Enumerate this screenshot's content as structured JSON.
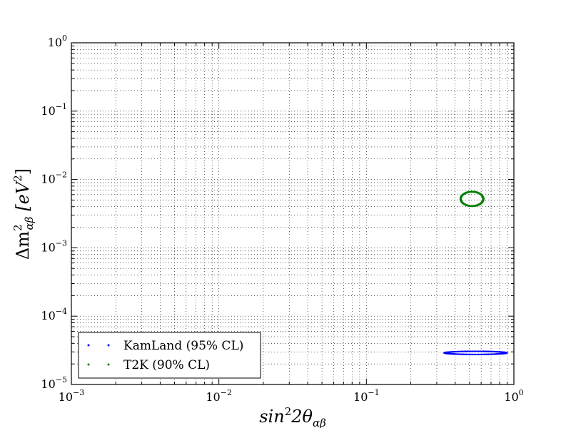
{
  "chart_data": {
    "type": "scatter",
    "xscale": "log",
    "yscale": "log",
    "xlim": [
      0.001,
      1
    ],
    "ylim": [
      1e-05,
      1
    ],
    "xlabel_base": "sin",
    "xlabel_rest": "2θ",
    "xlabel_sub": "αβ",
    "xlabel_sup": "2",
    "ylabel_main": "Δm",
    "ylabel_sub": "αβ",
    "ylabel_sup": "2",
    "ylabel_unit": "[eV",
    "ylabel_unit_sup": "2",
    "ylabel_unit_close": "]",
    "grid": true,
    "legend_position": "lower-left",
    "x_ticks": [
      {
        "value": 0.001,
        "base": "10",
        "exp": "−3"
      },
      {
        "value": 0.01,
        "base": "10",
        "exp": "−2"
      },
      {
        "value": 0.1,
        "base": "10",
        "exp": "−1"
      },
      {
        "value": 1,
        "base": "10",
        "exp": "0"
      }
    ],
    "y_ticks": [
      {
        "value": 1e-05,
        "base": "10",
        "exp": "−5"
      },
      {
        "value": 0.0001,
        "base": "10",
        "exp": "−4"
      },
      {
        "value": 0.001,
        "base": "10",
        "exp": "−3"
      },
      {
        "value": 0.01,
        "base": "10",
        "exp": "−2"
      },
      {
        "value": 0.1,
        "base": "10",
        "exp": "−1"
      },
      {
        "value": 1,
        "base": "10",
        "exp": "0"
      }
    ],
    "series": [
      {
        "name": "KamLand (95% CL)",
        "color": "#0000ff",
        "contour": {
          "center_x": 0.55,
          "center_y": 2.9e-05,
          "x_min": 0.33,
          "x_max": 0.88,
          "y_min": 2.75e-05,
          "y_max": 3.07e-05,
          "n_points": 120
        }
      },
      {
        "name": "T2K (90% CL)",
        "color": "#008000",
        "contour": {
          "center_x": 0.52,
          "center_y": 0.0052,
          "x_min": 0.43,
          "x_max": 0.62,
          "y_min": 0.004,
          "y_max": 0.0066,
          "n_points": 110
        }
      }
    ]
  }
}
